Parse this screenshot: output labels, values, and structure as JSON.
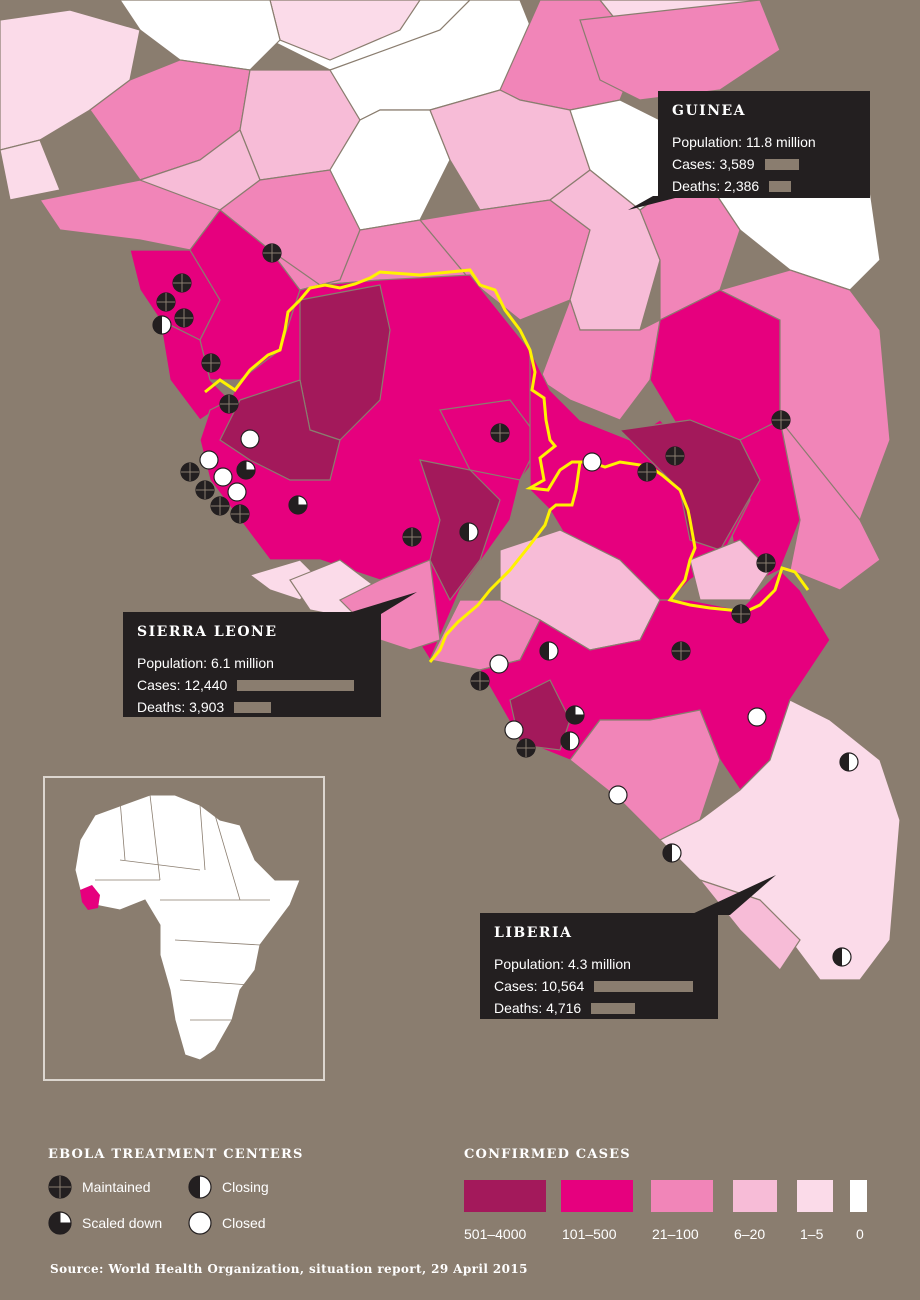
{
  "countries": [
    {
      "name": "GUINEA",
      "population": "Population: 11.8 million",
      "cases_label": "Cases: 3,589",
      "deaths_label": "Deaths: 2,386",
      "cases": 3589,
      "deaths": 2386
    },
    {
      "name": "SIERRA LEONE",
      "population": "Population: 6.1 million",
      "cases_label": "Cases: 12,440",
      "deaths_label": "Deaths: 3,903",
      "cases": 12440,
      "deaths": 3903
    },
    {
      "name": "LIBERIA",
      "population": "Population: 4.3 million",
      "cases_label": "Cases: 10,564",
      "deaths_label": "Deaths: 4,716",
      "cases": 10564,
      "deaths": 4716
    }
  ],
  "treatment_legend": {
    "title": "EBOLA TREATMENT CENTERS",
    "items": [
      {
        "status": "maintained",
        "label": "Maintained",
        "icon": "maintained-icon"
      },
      {
        "status": "closing",
        "label": "Closing",
        "icon": "closing-icon"
      },
      {
        "status": "scaled_down",
        "label": "Scaled down",
        "icon": "scaled-down-icon"
      },
      {
        "status": "closed",
        "label": "Closed",
        "icon": "closed-icon"
      }
    ]
  },
  "cases_legend": {
    "title": "CONFIRMED CASES",
    "bins": [
      {
        "label": "501–4000",
        "color": "#a3195b"
      },
      {
        "label": "101–500",
        "color": "#e6007e"
      },
      {
        "label": "21–100",
        "color": "#f185b8"
      },
      {
        "label": "6–20",
        "color": "#f7bcd7"
      },
      {
        "label": "1–5",
        "color": "#fbdbe9"
      },
      {
        "label": "0",
        "color": "#ffffff"
      }
    ]
  },
  "colors": {
    "background": "#8a7d6f",
    "border": "#fff200",
    "callout": "#231f20",
    "africa_highlight": "#e6007e"
  },
  "source": "Source: World Health Organization, situation report, 29 April 2015"
}
